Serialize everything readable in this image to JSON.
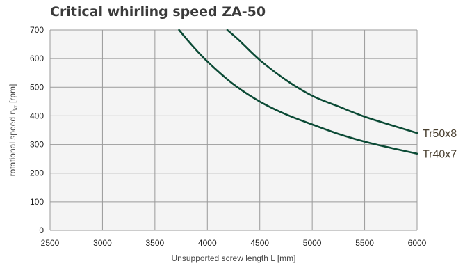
{
  "chart_data": {
    "type": "line",
    "title": "Critical whirling speed ZA-50",
    "xlabel": "Unsupported screw length L [mm]",
    "ylabel": {
      "main": "rotational speed n",
      "sub": "kr",
      "unit": " [rpm]"
    },
    "xlim": [
      2500,
      6000
    ],
    "ylim": [
      0,
      700
    ],
    "xticks": [
      "2500",
      "3000",
      "3500",
      "4000",
      "4500",
      "5000",
      "5500",
      "6000"
    ],
    "yticks": [
      "0",
      "100",
      "200",
      "300",
      "400",
      "500",
      "600",
      "700"
    ],
    "grid": true,
    "line_color": "#0b4a35",
    "series": [
      {
        "name": "Tr50x8",
        "x": [
          4190,
          4300,
          4500,
          4750,
          5000,
          5250,
          5500,
          5750,
          6000
        ],
        "y": [
          700,
          665,
          595,
          525,
          470,
          433,
          397,
          368,
          340
        ]
      },
      {
        "name": "Tr40x7",
        "x": [
          3730,
          3850,
          4000,
          4250,
          4500,
          4750,
          5000,
          5250,
          5500,
          5750,
          6000
        ],
        "y": [
          700,
          648,
          590,
          510,
          450,
          405,
          370,
          337,
          310,
          288,
          268
        ]
      }
    ]
  }
}
